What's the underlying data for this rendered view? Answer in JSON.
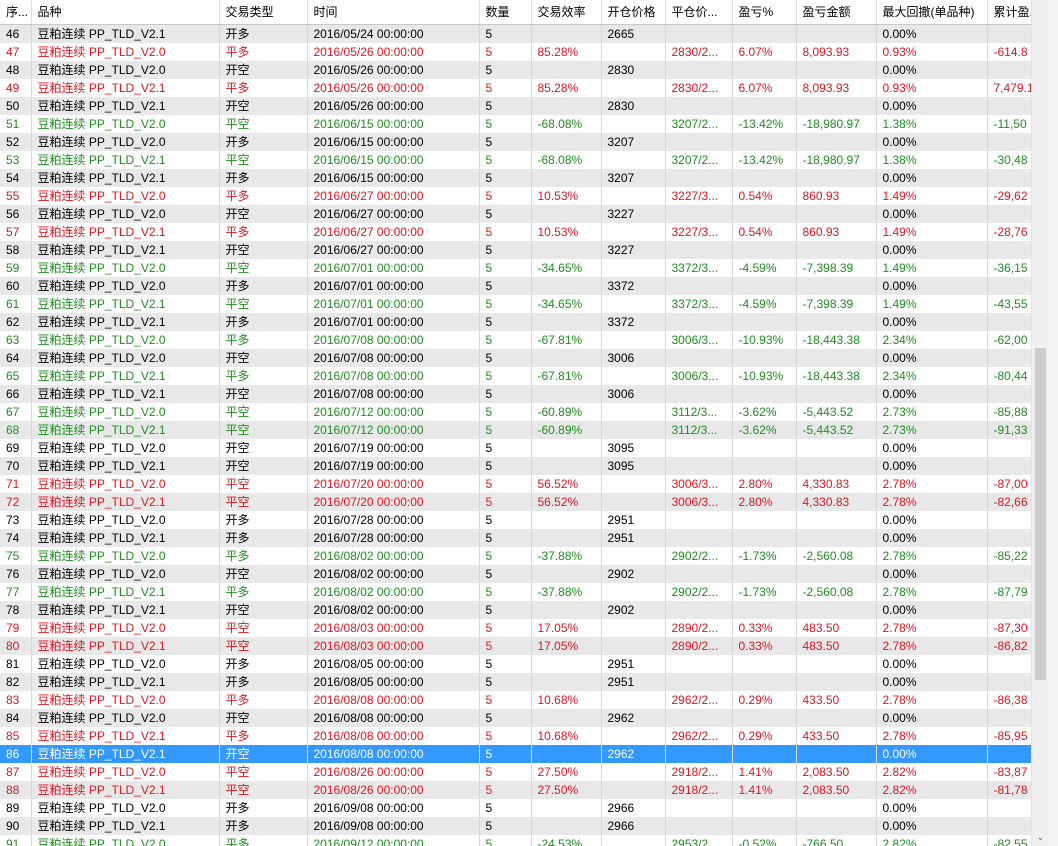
{
  "columns": [
    "序...",
    "品种",
    "交易类型",
    "时间",
    "数量",
    "交易效率",
    "开仓价格",
    "平仓价...",
    "盈亏%",
    "盈亏金额",
    "最大回撤(单品种)",
    "累计盈..."
  ],
  "selected_row": "86",
  "colors": {
    "profit": "#e0171d",
    "loss": "#1e8f1e",
    "neutral": "#000000",
    "selection": "#3399ff"
  },
  "icons": {
    "scroll_down": "chevron-down-icon"
  },
  "scrollbar": {
    "position_fraction": 0.42,
    "visible_fraction": 0.4,
    "down_arrow": "⌄"
  },
  "rows": [
    {
      "c": "black",
      "cells": [
        "46",
        "豆粕连续  PP_TLD_V2.1",
        "开多",
        "2016/05/24 00:00:00",
        "5",
        "",
        "2665",
        "",
        "",
        "",
        "0.00%",
        ""
      ]
    },
    {
      "c": "red",
      "cells": [
        "47",
        "豆粕连续  PP_TLD_V2.0",
        "平多",
        "2016/05/26 00:00:00",
        "5",
        "85.28%",
        "",
        "2830/2...",
        "6.07%",
        "8,093.93",
        "0.93%",
        "-614.8"
      ]
    },
    {
      "c": "black",
      "cells": [
        "48",
        "豆粕连续  PP_TLD_V2.0",
        "开空",
        "2016/05/26 00:00:00",
        "5",
        "",
        "2830",
        "",
        "",
        "",
        "0.00%",
        ""
      ]
    },
    {
      "c": "red",
      "cells": [
        "49",
        "豆粕连续  PP_TLD_V2.1",
        "平多",
        "2016/05/26 00:00:00",
        "5",
        "85.28%",
        "",
        "2830/2...",
        "6.07%",
        "8,093.93",
        "0.93%",
        "7,479.1"
      ]
    },
    {
      "c": "black",
      "cells": [
        "50",
        "豆粕连续  PP_TLD_V2.1",
        "开空",
        "2016/05/26 00:00:00",
        "5",
        "",
        "2830",
        "",
        "",
        "",
        "0.00%",
        ""
      ]
    },
    {
      "c": "green",
      "cells": [
        "51",
        "豆粕连续  PP_TLD_V2.0",
        "平空",
        "2016/06/15 00:00:00",
        "5",
        "-68.08%",
        "",
        "3207/2...",
        "-13.42%",
        "-18,980.97",
        "1.38%",
        "-11,50"
      ]
    },
    {
      "c": "black",
      "cells": [
        "52",
        "豆粕连续  PP_TLD_V2.0",
        "开多",
        "2016/06/15 00:00:00",
        "5",
        "",
        "3207",
        "",
        "",
        "",
        "0.00%",
        ""
      ]
    },
    {
      "c": "green",
      "cells": [
        "53",
        "豆粕连续  PP_TLD_V2.1",
        "平空",
        "2016/06/15 00:00:00",
        "5",
        "-68.08%",
        "",
        "3207/2...",
        "-13.42%",
        "-18,980.97",
        "1.38%",
        "-30,48"
      ]
    },
    {
      "c": "black",
      "cells": [
        "54",
        "豆粕连续  PP_TLD_V2.1",
        "开多",
        "2016/06/15 00:00:00",
        "5",
        "",
        "3207",
        "",
        "",
        "",
        "0.00%",
        ""
      ]
    },
    {
      "c": "red",
      "cells": [
        "55",
        "豆粕连续  PP_TLD_V2.0",
        "平多",
        "2016/06/27 00:00:00",
        "5",
        "10.53%",
        "",
        "3227/3...",
        "0.54%",
        "860.93",
        "1.49%",
        "-29,62"
      ]
    },
    {
      "c": "black",
      "cells": [
        "56",
        "豆粕连续  PP_TLD_V2.0",
        "开空",
        "2016/06/27 00:00:00",
        "5",
        "",
        "3227",
        "",
        "",
        "",
        "0.00%",
        ""
      ]
    },
    {
      "c": "red",
      "cells": [
        "57",
        "豆粕连续  PP_TLD_V2.1",
        "平多",
        "2016/06/27 00:00:00",
        "5",
        "10.53%",
        "",
        "3227/3...",
        "0.54%",
        "860.93",
        "1.49%",
        "-28,76"
      ]
    },
    {
      "c": "black",
      "cells": [
        "58",
        "豆粕连续  PP_TLD_V2.1",
        "开空",
        "2016/06/27 00:00:00",
        "5",
        "",
        "3227",
        "",
        "",
        "",
        "0.00%",
        ""
      ]
    },
    {
      "c": "green",
      "cells": [
        "59",
        "豆粕连续  PP_TLD_V2.0",
        "平空",
        "2016/07/01 00:00:00",
        "5",
        "-34.65%",
        "",
        "3372/3...",
        "-4.59%",
        "-7,398.39",
        "1.49%",
        "-36,15"
      ]
    },
    {
      "c": "black",
      "cells": [
        "60",
        "豆粕连续  PP_TLD_V2.0",
        "开多",
        "2016/07/01 00:00:00",
        "5",
        "",
        "3372",
        "",
        "",
        "",
        "0.00%",
        ""
      ]
    },
    {
      "c": "green",
      "cells": [
        "61",
        "豆粕连续  PP_TLD_V2.1",
        "平空",
        "2016/07/01 00:00:00",
        "5",
        "-34.65%",
        "",
        "3372/3...",
        "-4.59%",
        "-7,398.39",
        "1.49%",
        "-43,55"
      ]
    },
    {
      "c": "black",
      "cells": [
        "62",
        "豆粕连续  PP_TLD_V2.1",
        "开多",
        "2016/07/01 00:00:00",
        "5",
        "",
        "3372",
        "",
        "",
        "",
        "0.00%",
        ""
      ]
    },
    {
      "c": "green",
      "cells": [
        "63",
        "豆粕连续  PP_TLD_V2.0",
        "平多",
        "2016/07/08 00:00:00",
        "5",
        "-67.81%",
        "",
        "3006/3...",
        "-10.93%",
        "-18,443.38",
        "2.34%",
        "-62,00"
      ]
    },
    {
      "c": "black",
      "cells": [
        "64",
        "豆粕连续  PP_TLD_V2.0",
        "开空",
        "2016/07/08 00:00:00",
        "5",
        "",
        "3006",
        "",
        "",
        "",
        "0.00%",
        ""
      ]
    },
    {
      "c": "green",
      "cells": [
        "65",
        "豆粕连续  PP_TLD_V2.1",
        "平多",
        "2016/07/08 00:00:00",
        "5",
        "-67.81%",
        "",
        "3006/3...",
        "-10.93%",
        "-18,443.38",
        "2.34%",
        "-80,44"
      ]
    },
    {
      "c": "black",
      "cells": [
        "66",
        "豆粕连续  PP_TLD_V2.1",
        "开空",
        "2016/07/08 00:00:00",
        "5",
        "",
        "3006",
        "",
        "",
        "",
        "0.00%",
        ""
      ]
    },
    {
      "c": "green",
      "cells": [
        "67",
        "豆粕连续  PP_TLD_V2.0",
        "平空",
        "2016/07/12 00:00:00",
        "5",
        "-60.89%",
        "",
        "3112/3...",
        "-3.62%",
        "-5,443.52",
        "2.73%",
        "-85,88"
      ]
    },
    {
      "c": "green",
      "cells": [
        "68",
        "豆粕连续  PP_TLD_V2.1",
        "平空",
        "2016/07/12 00:00:00",
        "5",
        "-60.89%",
        "",
        "3112/3...",
        "-3.62%",
        "-5,443.52",
        "2.73%",
        "-91,33"
      ]
    },
    {
      "c": "black",
      "cells": [
        "69",
        "豆粕连续  PP_TLD_V2.0",
        "开空",
        "2016/07/19 00:00:00",
        "5",
        "",
        "3095",
        "",
        "",
        "",
        "0.00%",
        ""
      ]
    },
    {
      "c": "black",
      "cells": [
        "70",
        "豆粕连续  PP_TLD_V2.1",
        "开空",
        "2016/07/19 00:00:00",
        "5",
        "",
        "3095",
        "",
        "",
        "",
        "0.00%",
        ""
      ]
    },
    {
      "c": "red",
      "cells": [
        "71",
        "豆粕连续  PP_TLD_V2.0",
        "平空",
        "2016/07/20 00:00:00",
        "5",
        "56.52%",
        "",
        "3006/3...",
        "2.80%",
        "4,330.83",
        "2.78%",
        "-87,00"
      ]
    },
    {
      "c": "red",
      "cells": [
        "72",
        "豆粕连续  PP_TLD_V2.1",
        "平空",
        "2016/07/20 00:00:00",
        "5",
        "56.52%",
        "",
        "3006/3...",
        "2.80%",
        "4,330.83",
        "2.78%",
        "-82,66"
      ]
    },
    {
      "c": "black",
      "cells": [
        "73",
        "豆粕连续  PP_TLD_V2.0",
        "开多",
        "2016/07/28 00:00:00",
        "5",
        "",
        "2951",
        "",
        "",
        "",
        "0.00%",
        ""
      ]
    },
    {
      "c": "black",
      "cells": [
        "74",
        "豆粕连续  PP_TLD_V2.1",
        "开多",
        "2016/07/28 00:00:00",
        "5",
        "",
        "2951",
        "",
        "",
        "",
        "0.00%",
        ""
      ]
    },
    {
      "c": "green",
      "cells": [
        "75",
        "豆粕连续  PP_TLD_V2.0",
        "平多",
        "2016/08/02 00:00:00",
        "5",
        "-37.88%",
        "",
        "2902/2...",
        "-1.73%",
        "-2,560.08",
        "2.78%",
        "-85,22"
      ]
    },
    {
      "c": "black",
      "cells": [
        "76",
        "豆粕连续  PP_TLD_V2.0",
        "开空",
        "2016/08/02 00:00:00",
        "5",
        "",
        "2902",
        "",
        "",
        "",
        "0.00%",
        ""
      ]
    },
    {
      "c": "green",
      "cells": [
        "77",
        "豆粕连续  PP_TLD_V2.1",
        "平多",
        "2016/08/02 00:00:00",
        "5",
        "-37.88%",
        "",
        "2902/2...",
        "-1.73%",
        "-2,560.08",
        "2.78%",
        "-87,79"
      ]
    },
    {
      "c": "black",
      "cells": [
        "78",
        "豆粕连续  PP_TLD_V2.1",
        "开空",
        "2016/08/02 00:00:00",
        "5",
        "",
        "2902",
        "",
        "",
        "",
        "0.00%",
        ""
      ]
    },
    {
      "c": "red",
      "cells": [
        "79",
        "豆粕连续  PP_TLD_V2.0",
        "平空",
        "2016/08/03 00:00:00",
        "5",
        "17.05%",
        "",
        "2890/2...",
        "0.33%",
        "483.50",
        "2.78%",
        "-87,30"
      ]
    },
    {
      "c": "red",
      "cells": [
        "80",
        "豆粕连续  PP_TLD_V2.1",
        "平空",
        "2016/08/03 00:00:00",
        "5",
        "17.05%",
        "",
        "2890/2...",
        "0.33%",
        "483.50",
        "2.78%",
        "-86,82"
      ]
    },
    {
      "c": "black",
      "cells": [
        "81",
        "豆粕连续  PP_TLD_V2.0",
        "开多",
        "2016/08/05 00:00:00",
        "5",
        "",
        "2951",
        "",
        "",
        "",
        "0.00%",
        ""
      ]
    },
    {
      "c": "black",
      "cells": [
        "82",
        "豆粕连续  PP_TLD_V2.1",
        "开多",
        "2016/08/05 00:00:00",
        "5",
        "",
        "2951",
        "",
        "",
        "",
        "0.00%",
        ""
      ]
    },
    {
      "c": "red",
      "cells": [
        "83",
        "豆粕连续  PP_TLD_V2.0",
        "平多",
        "2016/08/08 00:00:00",
        "5",
        "10.68%",
        "",
        "2962/2...",
        "0.29%",
        "433.50",
        "2.78%",
        "-86,38"
      ]
    },
    {
      "c": "black",
      "cells": [
        "84",
        "豆粕连续  PP_TLD_V2.0",
        "开空",
        "2016/08/08 00:00:00",
        "5",
        "",
        "2962",
        "",
        "",
        "",
        "0.00%",
        ""
      ]
    },
    {
      "c": "red",
      "cells": [
        "85",
        "豆粕连续  PP_TLD_V2.1",
        "平多",
        "2016/08/08 00:00:00",
        "5",
        "10.68%",
        "",
        "2962/2...",
        "0.29%",
        "433.50",
        "2.78%",
        "-85,95"
      ]
    },
    {
      "c": "black",
      "cells": [
        "86",
        "豆粕连续  PP_TLD_V2.1",
        "开空",
        "2016/08/08 00:00:00",
        "5",
        "",
        "2962",
        "",
        "",
        "",
        "0.00%",
        ""
      ]
    },
    {
      "c": "red",
      "cells": [
        "87",
        "豆粕连续  PP_TLD_V2.0",
        "平空",
        "2016/08/26 00:00:00",
        "5",
        "27.50%",
        "",
        "2918/2...",
        "1.41%",
        "2,083.50",
        "2.82%",
        "-83,87"
      ]
    },
    {
      "c": "red",
      "cells": [
        "88",
        "豆粕连续  PP_TLD_V2.1",
        "平空",
        "2016/08/26 00:00:00",
        "5",
        "27.50%",
        "",
        "2918/2...",
        "1.41%",
        "2,083.50",
        "2.82%",
        "-81,78"
      ]
    },
    {
      "c": "black",
      "cells": [
        "89",
        "豆粕连续  PP_TLD_V2.0",
        "开多",
        "2016/09/08 00:00:00",
        "5",
        "",
        "2966",
        "",
        "",
        "",
        "0.00%",
        ""
      ]
    },
    {
      "c": "black",
      "cells": [
        "90",
        "豆粕连续  PP_TLD_V2.1",
        "开多",
        "2016/09/08 00:00:00",
        "5",
        "",
        "2966",
        "",
        "",
        "",
        "0.00%",
        ""
      ]
    },
    {
      "c": "green",
      "cells": [
        "91",
        "豆粕连续  PP_TLD_V2.0",
        "平多",
        "2016/09/12 00:00:00",
        "5",
        "-24.53%",
        "",
        "2953/2...",
        "-0.52%",
        "-766.50",
        "2.82%",
        "-82,55"
      ]
    }
  ]
}
